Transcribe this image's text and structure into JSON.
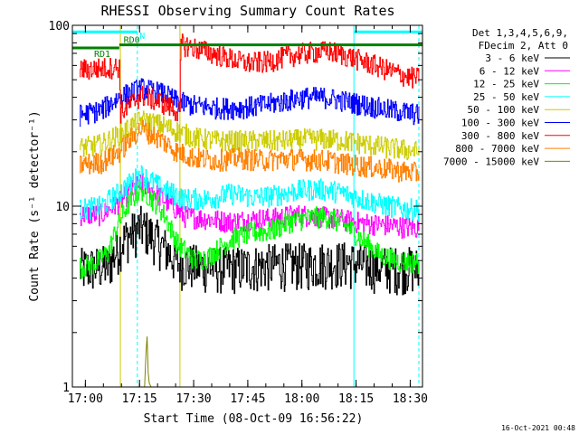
{
  "chart_data": {
    "type": "line",
    "title": "RHESSI Observing Summary Count Rates",
    "xlabel": "Start Time (08-Oct-09 16:56:22)",
    "ylabel": "Count Rate (s⁻¹ detector⁻¹)",
    "y_scale": "log",
    "ylim": [
      1,
      100
    ],
    "xlim_minutes_after_start": [
      0,
      97
    ],
    "x_tick_labels": [
      "17:00",
      "17:15",
      "17:30",
      "17:45",
      "18:00",
      "18:15",
      "18:30"
    ],
    "x_tick_minutes_after_start": [
      3.6,
      18.6,
      33.6,
      48.6,
      63.6,
      78.6,
      93.6
    ],
    "y_tick_labels": [
      "1",
      "10",
      "100"
    ],
    "legend_header": [
      "Det 1,3,4,5,6,9,",
      "FDecim 2, Att 0"
    ],
    "legend_position": "right",
    "timestamp": "16-Oct-2021 00:48",
    "annotations": [
      {
        "text": "N",
        "color": "#00ffff"
      },
      {
        "text": "RD0",
        "color": "#008000"
      },
      {
        "text": "RD1",
        "color": "#008000"
      }
    ],
    "series": [
      {
        "name": "3 - 6 keV",
        "color": "#000000",
        "points": [
          [
            2,
            4.5
          ],
          [
            6,
            4.6
          ],
          [
            10,
            4.7
          ],
          [
            14,
            6.5
          ],
          [
            19,
            7.7
          ],
          [
            24,
            6.3
          ],
          [
            29,
            4.9
          ],
          [
            34,
            4.7
          ],
          [
            40,
            4.6
          ],
          [
            46,
            4.6
          ],
          [
            52,
            4.7
          ],
          [
            58,
            4.8
          ],
          [
            64,
            4.8
          ],
          [
            70,
            4.9
          ],
          [
            76,
            4.9
          ],
          [
            82,
            4.7
          ],
          [
            88,
            4.6
          ],
          [
            93,
            4.6
          ],
          [
            96,
            4.5
          ]
        ]
      },
      {
        "name": "6 - 12 keV",
        "color": "#ff00ff",
        "points": [
          [
            2,
            9
          ],
          [
            8,
            9
          ],
          [
            13,
            10.5
          ],
          [
            19,
            13.5
          ],
          [
            25,
            11
          ],
          [
            31,
            8.8
          ],
          [
            38,
            8.5
          ],
          [
            44,
            8.2
          ],
          [
            50,
            8.5
          ],
          [
            56,
            8.6
          ],
          [
            62,
            9
          ],
          [
            68,
            8.8
          ],
          [
            74,
            8.5
          ],
          [
            80,
            8.1
          ],
          [
            86,
            7.9
          ],
          [
            92,
            7.7
          ],
          [
            96,
            7.6
          ]
        ]
      },
      {
        "name": "12 - 25 keV",
        "color": "#00ff00",
        "points": [
          [
            2,
            4.6
          ],
          [
            6,
            4.8
          ],
          [
            10,
            5.6
          ],
          [
            15,
            10
          ],
          [
            19,
            12.5
          ],
          [
            24,
            10
          ],
          [
            29,
            6.2
          ],
          [
            34,
            5
          ],
          [
            38,
            5.3
          ],
          [
            44,
            6.6
          ],
          [
            50,
            7.2
          ],
          [
            55,
            7.3
          ],
          [
            60,
            8.2
          ],
          [
            65,
            8.6
          ],
          [
            70,
            8.8
          ],
          [
            75,
            8
          ],
          [
            80,
            6.6
          ],
          [
            85,
            5.4
          ],
          [
            90,
            5
          ],
          [
            96,
            4.9
          ]
        ]
      },
      {
        "name": "25 - 50 keV",
        "color": "#00ffff",
        "points": [
          [
            2,
            9.6
          ],
          [
            8,
            10
          ],
          [
            13,
            12
          ],
          [
            19,
            15
          ],
          [
            25,
            12.5
          ],
          [
            31,
            11
          ],
          [
            38,
            11
          ],
          [
            44,
            11.8
          ],
          [
            50,
            11.2
          ],
          [
            56,
            11.5
          ],
          [
            62,
            12.2
          ],
          [
            68,
            12.5
          ],
          [
            74,
            12
          ],
          [
            80,
            11
          ],
          [
            86,
            10.2
          ],
          [
            92,
            9.7
          ],
          [
            96,
            9.6
          ]
        ]
      },
      {
        "name": "50 - 100 keV",
        "color": "#cccc00",
        "points": [
          [
            2,
            21
          ],
          [
            8,
            22
          ],
          [
            13,
            25
          ],
          [
            19,
            30
          ],
          [
            25,
            28
          ],
          [
            29,
            26
          ],
          [
            34,
            24
          ],
          [
            40,
            23
          ],
          [
            46,
            23
          ],
          [
            52,
            23
          ],
          [
            58,
            23
          ],
          [
            64,
            23.5
          ],
          [
            70,
            23.5
          ],
          [
            76,
            23
          ],
          [
            82,
            22
          ],
          [
            88,
            21
          ],
          [
            93,
            20.5
          ],
          [
            96,
            20
          ]
        ]
      },
      {
        "name": "100 - 300 keV",
        "color": "#0000ff",
        "points": [
          [
            2,
            32
          ],
          [
            8,
            34
          ],
          [
            13,
            40
          ],
          [
            19,
            45
          ],
          [
            25,
            42
          ],
          [
            29,
            38
          ],
          [
            34,
            36
          ],
          [
            40,
            35
          ],
          [
            46,
            35
          ],
          [
            52,
            36
          ],
          [
            58,
            38
          ],
          [
            64,
            40
          ],
          [
            70,
            40
          ],
          [
            76,
            38
          ],
          [
            82,
            36
          ],
          [
            88,
            34
          ],
          [
            93,
            33
          ],
          [
            96,
            32
          ]
        ]
      },
      {
        "name": "300 - 800 keV",
        "color": "#ff0000",
        "points": [
          [
            2,
            57
          ],
          [
            8,
            58
          ],
          [
            13,
            59
          ],
          [
            13.3,
            33
          ],
          [
            15,
            35
          ],
          [
            19,
            41
          ],
          [
            24,
            38
          ],
          [
            29.8,
            33
          ],
          [
            30,
            80
          ],
          [
            31,
            78
          ],
          [
            36,
            73
          ],
          [
            42,
            67
          ],
          [
            48,
            62
          ],
          [
            54,
            63
          ],
          [
            60,
            68
          ],
          [
            66,
            71
          ],
          [
            71,
            72
          ],
          [
            76,
            68
          ],
          [
            82,
            62
          ],
          [
            88,
            56
          ],
          [
            93,
            52
          ],
          [
            96,
            51
          ]
        ]
      },
      {
        "name": "800 - 7000 keV",
        "color": "#ff8000",
        "points": [
          [
            2,
            17
          ],
          [
            8,
            17.5
          ],
          [
            13,
            20
          ],
          [
            19,
            27
          ],
          [
            25,
            23
          ],
          [
            29,
            20
          ],
          [
            34,
            18.5
          ],
          [
            40,
            18
          ],
          [
            46,
            18.5
          ],
          [
            52,
            18
          ],
          [
            58,
            18.3
          ],
          [
            64,
            18.2
          ],
          [
            70,
            18
          ],
          [
            76,
            17.2
          ],
          [
            82,
            16.6
          ],
          [
            88,
            16
          ],
          [
            93,
            15.5
          ],
          [
            96,
            15.3
          ]
        ]
      },
      {
        "name": "7000 - 15000 keV",
        "color": "#808000",
        "points": [
          [
            20,
            1
          ],
          [
            20.4,
            1.55
          ],
          [
            20.7,
            1.9
          ],
          [
            21.0,
            1.2
          ],
          [
            21.3,
            1.05
          ],
          [
            21.8,
            1
          ]
        ]
      }
    ],
    "overlays": [
      {
        "label": "N",
        "color": "#00ffff",
        "y": 92,
        "segments": [
          [
            0,
            18
          ],
          [
            78,
            97
          ]
        ]
      },
      {
        "label": "RD0",
        "color": "#008000",
        "y": 78,
        "segments": [
          [
            13,
            30
          ],
          [
            30,
            97
          ]
        ]
      },
      {
        "label": "RD1",
        "color": "#008000",
        "y": 75,
        "segments": [
          [
            0,
            13
          ]
        ]
      }
    ],
    "vertical_markers": [
      {
        "minutes": 0,
        "color": "#00ffff",
        "style": "solid"
      },
      {
        "minutes": 18,
        "color": "#00ffff",
        "style": "dashed"
      },
      {
        "minutes": 78,
        "color": "#00ffff",
        "style": "solid"
      },
      {
        "minutes": 96,
        "color": "#00ffff",
        "style": "dashed"
      },
      {
        "minutes": 13.3,
        "color": "#cccc00",
        "style": "solid"
      },
      {
        "minutes": 29.8,
        "color": "#cccc00",
        "style": "solid"
      }
    ]
  }
}
